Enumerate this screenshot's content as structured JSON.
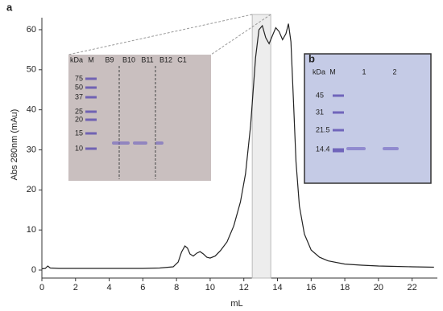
{
  "chart_data": {
    "type": "line",
    "panel_label": "a",
    "x_label": "mL",
    "y_label": "Abs 280nm (mAu)",
    "xlim": [
      0,
      23.5
    ],
    "ylim": [
      -2,
      63
    ],
    "xticks": [
      0,
      2,
      4,
      6,
      8,
      10,
      12,
      14,
      16,
      18,
      20,
      22
    ],
    "yticks": [
      0,
      10,
      20,
      30,
      40,
      50,
      60
    ],
    "x": [
      0,
      0.2,
      0.35,
      0.5,
      1,
      2,
      4,
      6,
      7,
      7.8,
      8.1,
      8.3,
      8.5,
      8.65,
      8.8,
      9.0,
      9.2,
      9.4,
      9.6,
      9.8,
      10.0,
      10.3,
      10.6,
      11.0,
      11.4,
      11.8,
      12.1,
      12.4,
      12.7,
      12.9,
      13.1,
      13.3,
      13.5,
      13.7,
      13.9,
      14.1,
      14.3,
      14.5,
      14.65,
      14.8,
      14.95,
      15.1,
      15.3,
      15.6,
      16.0,
      16.5,
      17.0,
      18.0,
      19.0,
      20.0,
      21.0,
      22.0,
      23.3
    ],
    "values": [
      0.3,
      0.4,
      1.0,
      0.5,
      0.4,
      0.4,
      0.4,
      0.4,
      0.5,
      0.8,
      2.0,
      4.5,
      6.0,
      5.5,
      4.0,
      3.5,
      4.2,
      4.6,
      4.0,
      3.2,
      3.0,
      3.5,
      4.8,
      7.0,
      11.0,
      17.0,
      24.0,
      36.0,
      53.0,
      60.0,
      61.0,
      58.0,
      56.5,
      58.5,
      60.5,
      59.5,
      57.5,
      59.0,
      61.5,
      57.0,
      42.0,
      27.0,
      16.0,
      9.0,
      5.0,
      3.2,
      2.3,
      1.5,
      1.2,
      1.0,
      0.9,
      0.8,
      0.7
    ],
    "color": "#222222",
    "highlight_x": [
      12.5,
      13.6
    ],
    "gels": [
      {
        "lane_labels": [
          "kDa",
          "M",
          "B9",
          "B10",
          "B11",
          "B12",
          "C1"
        ],
        "marker_labels": [
          75,
          50,
          37,
          25,
          20,
          15,
          10
        ]
      },
      {
        "panel_label": "b",
        "lane_labels": [
          "kDa",
          "M",
          "1",
          "2"
        ],
        "marker_labels": [
          45,
          31,
          21.5,
          14.4
        ]
      }
    ]
  }
}
